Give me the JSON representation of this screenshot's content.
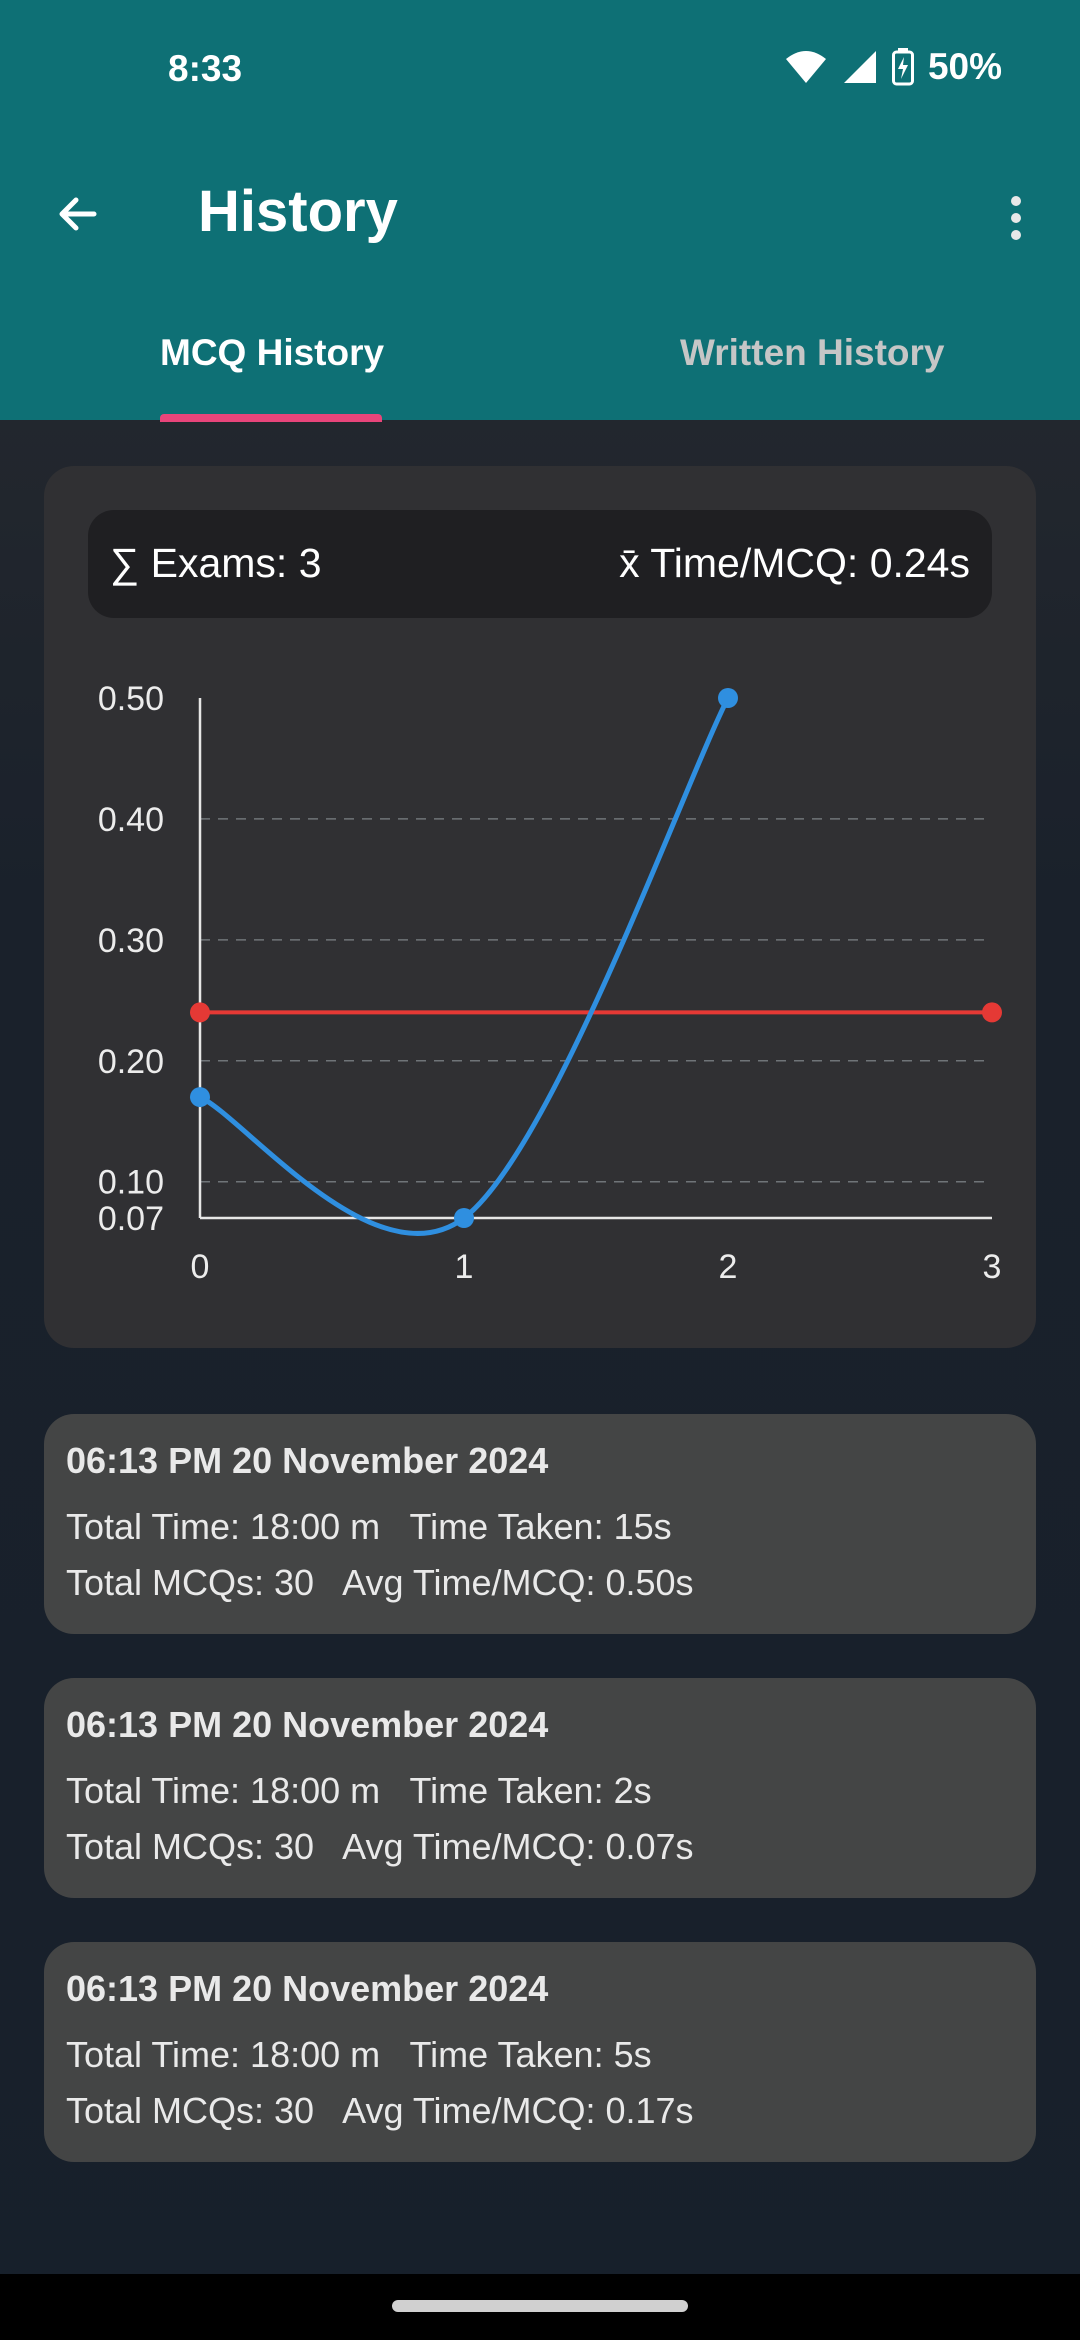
{
  "status_bar": {
    "time": "8:33",
    "battery": "50%",
    "icons": [
      "wifi-icon",
      "signal-icon",
      "battery-charging-icon"
    ]
  },
  "toolbar": {
    "title": "History",
    "back_icon": "arrow-back-icon",
    "more_icon": "more-vert-icon"
  },
  "tabs": [
    {
      "label": "MCQ History",
      "active": true
    },
    {
      "label": "Written History",
      "active": false
    }
  ],
  "summary": {
    "exams": "∑ Exams: 3",
    "avg_time": "x̄ Time/MCQ: 0.24s"
  },
  "chart_data": {
    "type": "line",
    "x": [
      0,
      1,
      2
    ],
    "series": [
      {
        "values": [
          0.17,
          0.07,
          0.5
        ],
        "color": "#2f8fe0",
        "curved": true
      },
      {
        "values": [
          0.24,
          0.24
        ],
        "x": [
          0,
          3
        ],
        "color": "#e53935"
      }
    ],
    "x_ticks": [
      "0",
      "1",
      "2",
      "3"
    ],
    "y_ticks": [
      "0.07",
      "0.10",
      "0.20",
      "0.30",
      "0.40",
      "0.50"
    ],
    "xlim": [
      0,
      3
    ],
    "ylim": [
      0.07,
      0.5
    ],
    "grid": "horizontal dashed"
  },
  "history": [
    {
      "date": "06:13 PM 20 November 2024",
      "line1": "Total Time: 18:00 m   Time Taken: 15s",
      "line2": "Total MCQs: 30   Avg Time/MCQ: 0.50s"
    },
    {
      "date": "06:13 PM 20 November 2024",
      "line1": "Total Time: 18:00 m   Time Taken: 2s",
      "line2": "Total MCQs: 30   Avg Time/MCQ: 0.07s"
    },
    {
      "date": "06:13 PM 20 November 2024",
      "line1": "Total Time: 18:00 m   Time Taken: 5s",
      "line2": "Total MCQs: 30   Avg Time/MCQ: 0.17s"
    }
  ],
  "colors": {
    "app_bar": "#0e7075",
    "tab_indicator": "#e8457a",
    "series_blue": "#2f8fe0",
    "series_red": "#e53935"
  }
}
